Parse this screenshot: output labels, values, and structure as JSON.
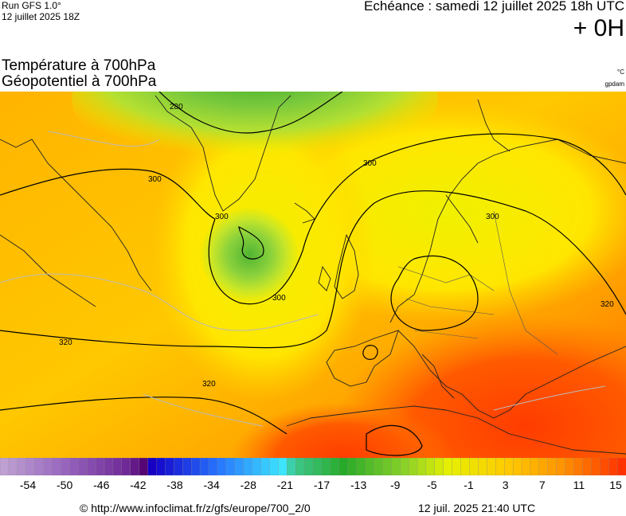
{
  "header": {
    "run_title": "Run GFS 1.0°",
    "run_date": "12 juillet 2025 18Z",
    "echeance": "Echéance : samedi 12 juillet 2025 18h UTC",
    "lead_time": "+ 0H"
  },
  "titles": {
    "line1": "Température à 700hPa",
    "line2": "Géopotentiel à 700hPa",
    "unit_temp": "°C",
    "unit_geo": "gpdam"
  },
  "contour_labels": [
    "280",
    "300",
    "300",
    "300",
    "300",
    "320",
    "320",
    "320",
    "300"
  ],
  "colorbar": {
    "min": -56,
    "max": 16,
    "tick_labels": [
      "-54",
      "-50",
      "-46",
      "-42",
      "-38",
      "-34",
      "-28",
      "-21",
      "-17",
      "-13",
      "-9",
      "-5",
      "-1",
      "3",
      "7",
      "11",
      "15"
    ]
  },
  "footer": {
    "copyright": "© http://www.infoclimat.fr/z/gfs/europe/700_2/0",
    "generated": "12 juil. 2025 21:40 UTC"
  }
}
